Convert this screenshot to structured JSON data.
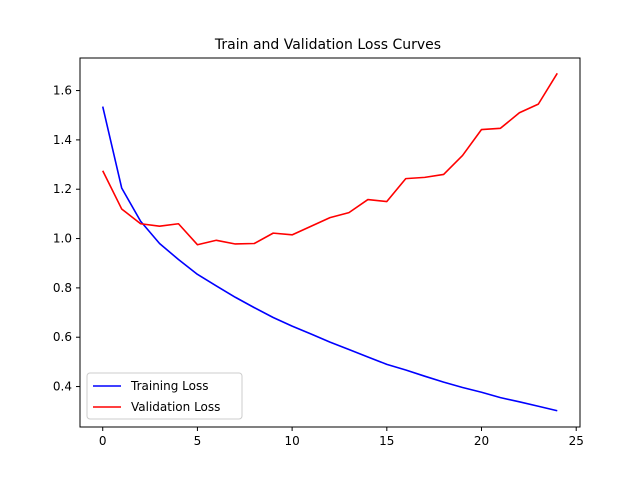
{
  "chart_data": {
    "type": "line",
    "title": "Train and Validation Loss Curves",
    "xlabel": "",
    "ylabel": "",
    "xlim": [
      -1.2,
      25.2
    ],
    "ylim": [
      0.236,
      1.732
    ],
    "xticks": [
      0,
      5,
      10,
      15,
      20,
      25
    ],
    "yticks": [
      0.4,
      0.6,
      0.8,
      1.0,
      1.2,
      1.4,
      1.6
    ],
    "xtick_labels": [
      "0",
      "5",
      "10",
      "15",
      "20",
      "25"
    ],
    "ytick_labels": [
      "0.4",
      "0.6",
      "0.8",
      "1.0",
      "1.2",
      "1.4",
      "1.6"
    ],
    "grid": false,
    "legend_position": "lower-left",
    "x": [
      0,
      1,
      2,
      3,
      4,
      5,
      6,
      7,
      8,
      9,
      10,
      11,
      12,
      13,
      14,
      15,
      16,
      17,
      18,
      19,
      20,
      21,
      22,
      23,
      24
    ],
    "series": [
      {
        "name": "Training Loss",
        "color": "#0000ff",
        "values": [
          1.535,
          1.205,
          1.07,
          0.98,
          0.915,
          0.855,
          0.808,
          0.762,
          0.72,
          0.68,
          0.645,
          0.613,
          0.58,
          0.55,
          0.52,
          0.49,
          0.467,
          0.442,
          0.418,
          0.396,
          0.377,
          0.355,
          0.338,
          0.32,
          0.302
        ]
      },
      {
        "name": "Validation Loss",
        "color": "#ff0000",
        "values": [
          1.275,
          1.12,
          1.06,
          1.05,
          1.06,
          0.975,
          0.993,
          0.978,
          0.98,
          1.022,
          1.015,
          1.05,
          1.085,
          1.105,
          1.158,
          1.15,
          1.243,
          1.248,
          1.26,
          1.337,
          1.442,
          1.447,
          1.51,
          1.545,
          1.67
        ]
      }
    ]
  }
}
